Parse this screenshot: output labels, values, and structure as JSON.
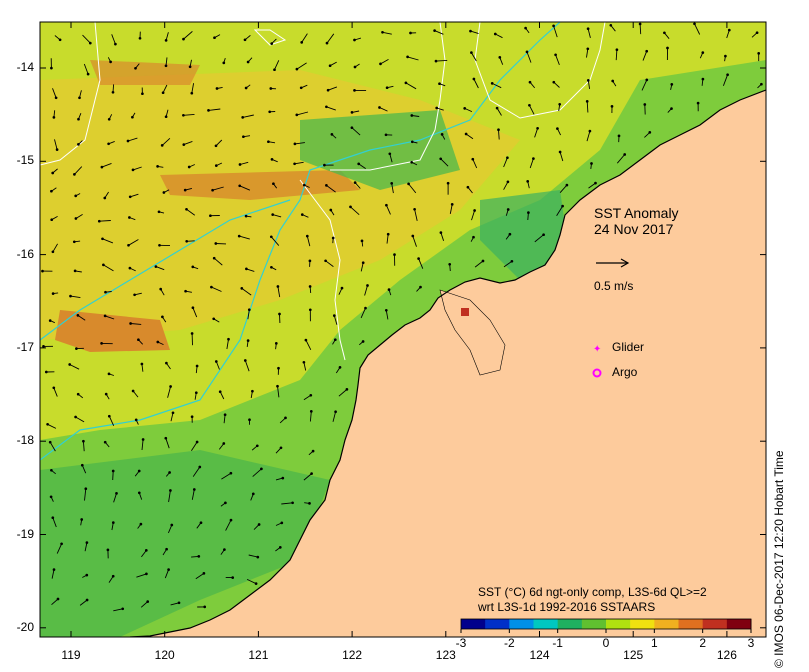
{
  "map": {
    "title_line1": "SST Anomaly",
    "title_line2": "24 Nov 2017",
    "scale_label": "0.5 m/s",
    "legend": {
      "glider": "Glider",
      "argo": "Argo"
    },
    "caption_line1": "SST (°C) 6d ngt-only comp, L3S-6d QL>=2",
    "caption_line2": "wrt L3S-1d 1992-2016 SSTAARS",
    "credit": "© IMOS 06-Dec-2017 12:20 Hobart Time",
    "y_ticks": [
      -14,
      -15,
      -16,
      -17,
      -18,
      -19,
      -20
    ],
    "x_ticks": [
      119,
      120,
      121,
      122,
      123,
      124,
      125,
      126
    ],
    "colorbar": {
      "ticks": [
        -3,
        -2,
        -1,
        0,
        1,
        2,
        3
      ],
      "colors": [
        "#00008c",
        "#0030c8",
        "#0090e8",
        "#00c8c0",
        "#20b060",
        "#60c030",
        "#b0e010",
        "#f0e010",
        "#f0b020",
        "#e07020",
        "#c03020",
        "#800010"
      ]
    },
    "colors": {
      "land": "#fdcb9c",
      "sea_base": "#7ecc3c",
      "current_line": "#33d0d0",
      "contour_line": "#ffffff",
      "marker": "#ff00ff"
    }
  }
}
